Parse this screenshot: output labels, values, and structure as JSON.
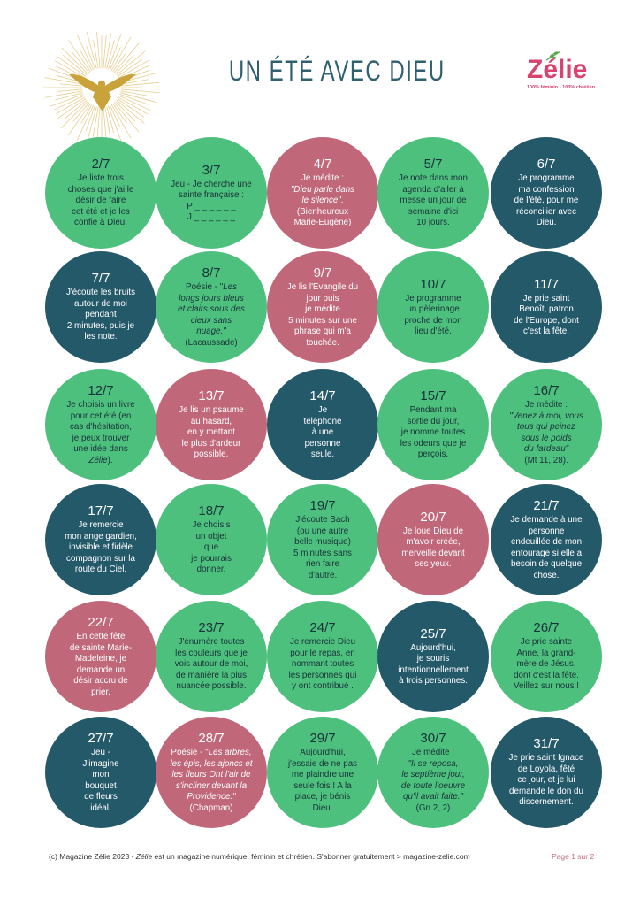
{
  "page": {
    "title": "UN ÉTÉ AVEC DIEU"
  },
  "brand": {
    "logo_text": "Zélie",
    "tagline": "100% féminin • 100% chrétien",
    "logo_icon": "dove-icon",
    "leaf_icon": "leaf-icon"
  },
  "colors": {
    "green": "#4ec07e",
    "pink": "#c1677a",
    "teal": "#24596a",
    "title": "#2e6070",
    "gold": "#c9a23a",
    "brand": "#d8436f",
    "page_label": "#c8697c"
  },
  "days": [
    {
      "date": "2/7",
      "color": "green",
      "lines": [
        "Je liste trois",
        "choses que j'ai le",
        "désir de faire",
        "cet été et je les",
        "confie à Dieu."
      ]
    },
    {
      "date": "3/7",
      "color": "green",
      "lines": [
        "Jeu - Je cherche une",
        "sainte française :",
        "P _ _ _ _ _ _",
        "J _ _ _ _ _ _"
      ]
    },
    {
      "date": "4/7",
      "color": "pink",
      "lines": [
        "Je médite :",
        [
          {
            "t": "\"Dieu parle dans",
            "i": true
          }
        ],
        [
          {
            "t": "le silence\"",
            "i": true
          },
          {
            "t": "."
          }
        ],
        "(Bienheureux",
        "Marie-Eugène)"
      ]
    },
    {
      "date": "5/7",
      "color": "green",
      "lines": [
        "Je note dans mon",
        "agenda d'aller à",
        "messe un jour de",
        "semaine d'ici",
        "10 jours."
      ]
    },
    {
      "date": "6/7",
      "color": "teal",
      "lines": [
        "Je programme",
        "ma confession",
        "de l'été, pour me",
        "réconcilier avec",
        "Dieu."
      ]
    },
    {
      "date": "7/7",
      "color": "teal",
      "lines": [
        "J'écoute les bruits",
        "autour de moi",
        "pendant",
        "2 minutes, puis je",
        "les note."
      ]
    },
    {
      "date": "8/7",
      "color": "green",
      "lines": [
        [
          {
            "t": "Poésie - \""
          },
          {
            "t": "Les",
            "i": true
          }
        ],
        [
          {
            "t": "longs jours bleus",
            "i": true
          }
        ],
        [
          {
            "t": "et clairs sous des",
            "i": true
          }
        ],
        [
          {
            "t": "cieux sans",
            "i": true
          }
        ],
        [
          {
            "t": "nuage.\"",
            "i": true
          }
        ],
        "(Lacaussade)"
      ]
    },
    {
      "date": "9/7",
      "color": "pink",
      "lines": [
        "Je lis l'Evangile du",
        "jour puis",
        "je médite",
        "5 minutes sur une",
        "phrase qui m'a",
        "touchée."
      ]
    },
    {
      "date": "10/7",
      "color": "green",
      "lines": [
        "Je programme",
        "un pèlerinage",
        "proche de mon",
        "lieu d'été."
      ]
    },
    {
      "date": "11/7",
      "color": "teal",
      "lines": [
        "Je prie saint",
        "Benoît, patron",
        "de l'Europe, dont",
        "c'est la fête."
      ]
    },
    {
      "date": "12/7",
      "color": "green",
      "lines": [
        "Je choisis un livre",
        "pour cet été (en",
        "cas d'hésitation,",
        "je peux trouver",
        "une idée dans",
        [
          {
            "t": "Zélie",
            "i": true
          },
          {
            "t": ")."
          }
        ]
      ]
    },
    {
      "date": "13/7",
      "color": "pink",
      "lines": [
        "Je lis un psaume",
        "au hasard,",
        "en y mettant",
        "le plus d'ardeur",
        "possible."
      ]
    },
    {
      "date": "14/7",
      "color": "teal",
      "lines": [
        "Je",
        "téléphone",
        "à une",
        "personne",
        "seule."
      ]
    },
    {
      "date": "15/7",
      "color": "green",
      "lines": [
        "Pendant ma",
        "sortie du jour,",
        "je nomme toutes",
        "les odeurs que je",
        "perçois."
      ]
    },
    {
      "date": "16/7",
      "color": "green",
      "lines": [
        "Je médite :",
        [
          {
            "t": "\"Venez à moi, vous",
            "i": true
          }
        ],
        [
          {
            "t": "tous qui peinez",
            "i": true
          }
        ],
        [
          {
            "t": "sous le poids",
            "i": true
          }
        ],
        [
          {
            "t": "du fardeau\"",
            "i": true
          }
        ],
        "(Mt 11, 28)."
      ]
    },
    {
      "date": "17/7",
      "color": "teal",
      "lines": [
        "Je remercie",
        "mon ange gardien,",
        "invisible et fidèle",
        "compagnon sur la",
        "route du Ciel."
      ]
    },
    {
      "date": "18/7",
      "color": "green",
      "lines": [
        "Je choisis",
        "un objet",
        "que",
        "je pourrais",
        "donner."
      ]
    },
    {
      "date": "19/7",
      "color": "green",
      "lines": [
        "J'écoute Bach",
        "(ou une autre",
        "belle musique)",
        "5 minutes sans",
        "rien faire",
        "d'autre."
      ]
    },
    {
      "date": "20/7",
      "color": "pink",
      "lines": [
        "Je loue Dieu de",
        "m'avoir créée,",
        "merveille devant",
        "ses yeux."
      ]
    },
    {
      "date": "21/7",
      "color": "teal",
      "lines": [
        "Je demande à une",
        "personne",
        "endeuillée de mon",
        "entourage si elle a",
        "besoin de quelque",
        "chose."
      ]
    },
    {
      "date": "22/7",
      "color": "pink",
      "lines": [
        "En cette fête",
        "de sainte Marie-",
        "Madeleine, je",
        "demande un",
        "désir accru de",
        "prier."
      ]
    },
    {
      "date": "23/7",
      "color": "green",
      "lines": [
        "J'énumère toutes",
        "les couleurs que je",
        "vois autour de moi,",
        "de manière la plus",
        "nuancée possible."
      ]
    },
    {
      "date": "24/7",
      "color": "green",
      "lines": [
        "Je remercie Dieu",
        "pour le repas, en",
        "nommant toutes",
        "les personnes qui",
        "y ont contribué ."
      ]
    },
    {
      "date": "25/7",
      "color": "teal",
      "lines": [
        "Aujourd'hui,",
        "je souris",
        "intentionnellement",
        "à trois personnes."
      ]
    },
    {
      "date": "26/7",
      "color": "green",
      "lines": [
        "Je prie sainte",
        "Anne, la grand-",
        "mère de Jésus,",
        "dont c'est la fête.",
        "Veillez sur nous !"
      ]
    },
    {
      "date": "27/7",
      "color": "teal",
      "lines": [
        "Jeu -",
        "J'imagine",
        "mon",
        "bouquet",
        "de fleurs",
        "idéal."
      ]
    },
    {
      "date": "28/7",
      "color": "pink",
      "lines": [
        [
          {
            "t": "Poésie - \""
          },
          {
            "t": "Les arbres,",
            "i": true
          }
        ],
        [
          {
            "t": "les épis, les ajoncs et",
            "i": true
          }
        ],
        [
          {
            "t": "les fleurs Ont l'air de",
            "i": true
          }
        ],
        [
          {
            "t": "s'incliner devant la",
            "i": true
          }
        ],
        [
          {
            "t": "Providence.\"",
            "i": true
          }
        ],
        "(Chapman)"
      ]
    },
    {
      "date": "29/7",
      "color": "green",
      "lines": [
        "Aujourd'hui,",
        "j'essaie de ne pas",
        "me plaindre une",
        "seule fois ! A la",
        "place, je bénis",
        "Dieu."
      ]
    },
    {
      "date": "30/7",
      "color": "green",
      "lines": [
        "Je médite :",
        [
          {
            "t": "\"Il se reposa,",
            "i": true
          }
        ],
        [
          {
            "t": "le septième jour,",
            "i": true
          }
        ],
        [
          {
            "t": "de toute l'oeuvre",
            "i": true
          }
        ],
        [
          {
            "t": "qu'il avait faite.\"",
            "i": true
          }
        ],
        "(Gn 2, 2)"
      ]
    },
    {
      "date": "31/7",
      "color": "teal",
      "lines": [
        "Je prie saint Ignace",
        "de Loyola, fêté",
        "ce jour, et je lui",
        "demande le don du",
        "discernement."
      ]
    }
  ],
  "footer": {
    "segments": [
      {
        "t": "(c) Magazine Zélie 2023 - "
      },
      {
        "t": "Zélie",
        "i": true
      },
      {
        "t": " est un magazine numérique, féminin et chrétien. S'abonner gratuitement > magazine-zelie.com"
      }
    ],
    "page_label": "Page 1 sur 2"
  }
}
